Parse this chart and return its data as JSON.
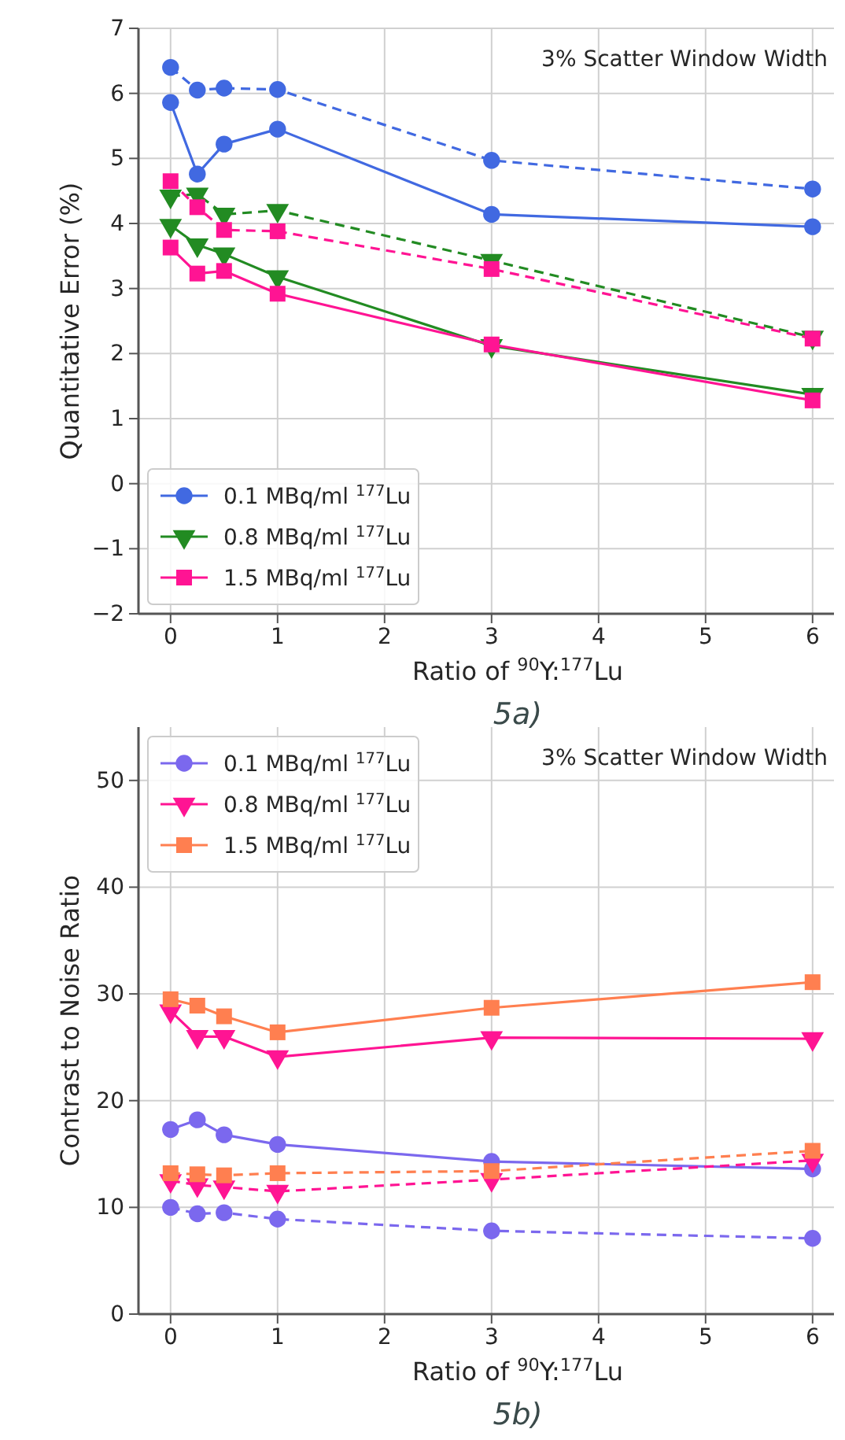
{
  "chart_data": [
    {
      "type": "line",
      "title": "5a)",
      "xlabel": "Ratio of  $^{90}$Y:$^{177}$Lu",
      "ylabel": "Quantitative Error (%)",
      "annotations": [
        "3% Scatter Window Width"
      ],
      "x": [
        0,
        0.25,
        0.5,
        1,
        3,
        6
      ],
      "xlim": [
        -0.3,
        6.2
      ],
      "xticks": [
        0,
        1,
        2,
        3,
        4,
        5,
        6
      ],
      "ylim": [
        -2,
        7
      ],
      "yticks": [
        -2,
        -1,
        0,
        1,
        2,
        3,
        4,
        5,
        6,
        7
      ],
      "grid": true,
      "legend": "bottom left",
      "series": [
        {
          "name": "0.1 MBq/ml $^{177}$Lu",
          "color": "#4169e1",
          "marker": "circle",
          "line_style": "solid",
          "values": [
            5.86,
            4.76,
            5.22,
            5.45,
            4.14,
            3.95
          ]
        },
        {
          "name": "0.8 MBq/ml $^{177}$Lu",
          "color": "#228b22",
          "marker": "triangle",
          "line_style": "solid",
          "values": [
            3.97,
            3.67,
            3.53,
            3.18,
            2.12,
            1.37
          ]
        },
        {
          "name": "1.5 MBq/ml $^{177}$Lu",
          "color": "#ff1493",
          "marker": "square",
          "line_style": "solid",
          "values": [
            3.63,
            3.23,
            3.27,
            2.92,
            2.14,
            1.28
          ]
        },
        {
          "color": "#4169e1",
          "marker": "circle",
          "line_style": "dashed",
          "values": [
            6.4,
            6.05,
            6.08,
            6.06,
            4.97,
            4.53
          ]
        },
        {
          "color": "#228b22",
          "marker": "triangle",
          "line_style": "dashed",
          "values": [
            4.42,
            4.45,
            4.14,
            4.2,
            3.43,
            2.25
          ]
        },
        {
          "color": "#ff1493",
          "marker": "square",
          "line_style": "dashed",
          "values": [
            4.65,
            4.25,
            3.9,
            3.88,
            3.3,
            2.23
          ]
        }
      ]
    },
    {
      "type": "line",
      "title": "5b)",
      "xlabel": "Ratio of  $^{90}$Y:$^{177}$Lu",
      "ylabel": "Contrast to Noise Ratio",
      "annotations": [
        "3% Scatter Window Width"
      ],
      "x": [
        0,
        0.25,
        0.5,
        1,
        3,
        6
      ],
      "xlim": [
        -0.3,
        6.2
      ],
      "xticks": [
        0,
        1,
        2,
        3,
        4,
        5,
        6
      ],
      "ylim": [
        0,
        55
      ],
      "yticks": [
        0,
        10,
        20,
        30,
        40,
        50
      ],
      "grid": true,
      "legend": "top left",
      "series": [
        {
          "name": "0.1 MBq/ml $^{177}$Lu",
          "color": "#7b68ee",
          "marker": "circle",
          "line_style": "solid",
          "values": [
            17.3,
            18.2,
            16.8,
            15.9,
            14.3,
            13.6
          ]
        },
        {
          "name": "0.8 MBq/ml $^{177}$Lu",
          "color": "#ff1493",
          "marker": "triangle",
          "line_style": "solid",
          "values": [
            28.4,
            26.0,
            26.0,
            24.1,
            25.9,
            25.8
          ]
        },
        {
          "name": "1.5 MBq/ml $^{177}$Lu",
          "color": "#ff7f50",
          "marker": "square",
          "line_style": "solid",
          "values": [
            29.5,
            28.9,
            27.9,
            26.4,
            28.7,
            31.1
          ]
        },
        {
          "color": "#7b68ee",
          "marker": "circle",
          "line_style": "dashed",
          "values": [
            10.0,
            9.4,
            9.5,
            8.9,
            7.8,
            7.1
          ]
        },
        {
          "color": "#ff1493",
          "marker": "triangle",
          "line_style": "dashed",
          "values": [
            12.5,
            12.1,
            11.9,
            11.5,
            12.6,
            14.4
          ]
        },
        {
          "color": "#ff7f50",
          "marker": "square",
          "line_style": "dashed",
          "values": [
            13.2,
            13.1,
            13.0,
            13.2,
            13.4,
            15.3
          ]
        }
      ]
    }
  ]
}
